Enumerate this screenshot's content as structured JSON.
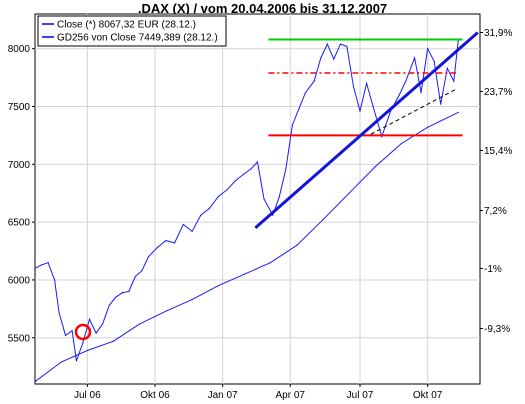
{
  "chart_data": {
    "type": "line",
    "title": ".DAX (X) / vom 20.04.2006 bis 31.12.2007",
    "ylim": [
      5100,
      8300
    ],
    "x_tick_labels": [
      "Jul 06",
      "Okt 06",
      "Jan 07",
      "Apr 07",
      "Jul 07",
      "Okt 07"
    ],
    "y_ticks_left": [
      5500,
      6000,
      6500,
      7000,
      7500,
      8000
    ],
    "y_ticks_right": [
      {
        "value": 8140,
        "label": "31,9%"
      },
      {
        "value": 7630,
        "label": "23,7%"
      },
      {
        "value": 7120,
        "label": "15,4%"
      },
      {
        "value": 6600,
        "label": "7,2%"
      },
      {
        "value": 6100,
        "label": "-1%"
      },
      {
        "value": 5580,
        "label": "-9,3%"
      }
    ],
    "grid": true,
    "legend_position": "top-left",
    "legend": [
      {
        "label": "Close (*) 8067,32 EUR (28.12.)",
        "color": "#0000ff"
      },
      {
        "label": "GD256 von Close 7449,389 (28.12.)",
        "color": "#0000ff"
      }
    ],
    "x_range": [
      0,
      20.4
    ],
    "series": [
      {
        "name": "Close (*) 8067,32 EUR (28.12.)",
        "color": "#1a1aff",
        "x": [
          0,
          0.3,
          0.6,
          0.9,
          1.1,
          1.4,
          1.7,
          1.9,
          2.2,
          2.5,
          2.8,
          3.1,
          3.4,
          3.7,
          4.0,
          4.3,
          4.6,
          4.9,
          5.2,
          5.6,
          6.0,
          6.4,
          6.8,
          7.2,
          7.6,
          8.0,
          8.4,
          8.8,
          9.2,
          9.6,
          9.9,
          10.2,
          10.5,
          10.9,
          11.2,
          11.5,
          11.8,
          12.1,
          12.4,
          12.8,
          13.1,
          13.4,
          13.7,
          14.0,
          14.3,
          14.6,
          14.9,
          15.2,
          15.5,
          15.9,
          16.3,
          16.7,
          17.0,
          17.4,
          17.7,
          18.0,
          18.3,
          18.6,
          18.9,
          19.2,
          19.4
        ],
        "values": [
          6100,
          6130,
          6150,
          6000,
          5720,
          5520,
          5560,
          5300,
          5460,
          5660,
          5540,
          5620,
          5780,
          5850,
          5890,
          5900,
          6030,
          6080,
          6200,
          6280,
          6340,
          6320,
          6480,
          6420,
          6560,
          6620,
          6720,
          6780,
          6860,
          6920,
          6960,
          7020,
          6700,
          6560,
          6720,
          6960,
          7340,
          7480,
          7620,
          7720,
          7920,
          8040,
          7910,
          8040,
          8020,
          7670,
          7460,
          7700,
          7500,
          7240,
          7460,
          7600,
          7720,
          7920,
          7620,
          8000,
          7890,
          7520,
          7830,
          7720,
          8067
        ]
      },
      {
        "name": "GD256 von Close 7449,389 (28.12.)",
        "color": "#1a1aff",
        "x": [
          0,
          1.2,
          2.4,
          3.6,
          4.8,
          6.0,
          7.2,
          8.4,
          9.6,
          10.8,
          12.0,
          13.2,
          14.4,
          15.6,
          16.8,
          18.0,
          19.4
        ],
        "values": [
          5120,
          5290,
          5390,
          5470,
          5620,
          5730,
          5830,
          5950,
          6050,
          6150,
          6300,
          6520,
          6750,
          6980,
          7180,
          7320,
          7449
        ]
      }
    ],
    "annotations": [
      {
        "kind": "hline",
        "color": "#00cc00",
        "x_from": 10.7,
        "x_to": 19.6,
        "y": 8080
      },
      {
        "kind": "hline_dashdot",
        "color": "#ff0000",
        "x_from": 10.7,
        "x_to": 19.3,
        "y": 7790
      },
      {
        "kind": "hline",
        "color": "#ff0000",
        "x_from": 10.7,
        "x_to": 19.6,
        "y": 7250
      },
      {
        "kind": "trendline",
        "color": "#1414dd",
        "x1": 10.1,
        "y1": 6450,
        "x2": 20.3,
        "y2": 8140
      },
      {
        "kind": "dashed",
        "color": "#000000",
        "x1": 15.4,
        "y1": 7260,
        "x2": 19.3,
        "y2": 7650
      },
      {
        "kind": "circle",
        "color": "#ff0000",
        "x": 2.2,
        "y": 5550
      }
    ]
  }
}
